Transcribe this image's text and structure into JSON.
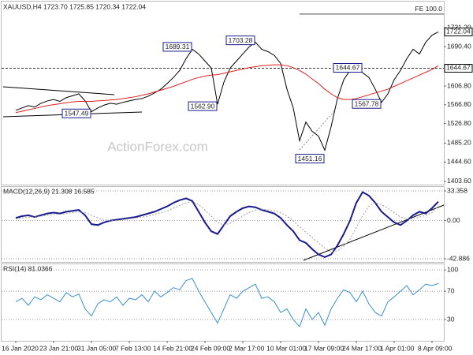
{
  "chart_data": [
    {
      "type": "line",
      "title": "XAUUSD,H4  1723.70 1725.85 1720.34 1722.04",
      "categories": [
        "16 Jan 2020",
        null,
        null,
        null,
        null,
        null,
        "23 Jan 21:00",
        null,
        null,
        null,
        null,
        null,
        "31 Jan 05:00",
        null,
        null,
        null,
        null,
        null,
        "7 Feb 13:00",
        null,
        null,
        null,
        null,
        null,
        "14 Feb 21:00",
        null,
        null,
        null,
        null,
        null,
        "24 Feb 09:00",
        null,
        null,
        null,
        null,
        null,
        "2 Mar 17:00",
        null,
        null,
        null,
        null,
        null,
        "10 Mar 01:00",
        null,
        null,
        null,
        null,
        null,
        "17 Mar 09:00",
        null,
        null,
        null,
        null,
        null,
        "24 Mar 17:00",
        null,
        null,
        null,
        null,
        null,
        "1 Apr 01:00",
        null,
        null,
        null,
        null,
        null,
        "8 Apr 09:00",
        null
      ],
      "series": [
        {
          "color": "#000000",
          "values": [
            1555,
            1560,
            1565,
            1562,
            1570,
            1575,
            1578,
            1574,
            1582,
            1586,
            1590,
            1575,
            1552,
            1560,
            1566,
            1570,
            1568,
            1572,
            1575,
            1578,
            1580,
            1585,
            1592,
            1600,
            1612,
            1625,
            1640,
            1665,
            1685,
            1675,
            1660,
            1645,
            1568,
            1615,
            1645,
            1660,
            1675,
            1690,
            1700,
            1685,
            1680,
            1672,
            1655,
            1600,
            1560,
            1490,
            1530,
            1510,
            1500,
            1470,
            1520,
            1580,
            1620,
            1640,
            1650,
            1635,
            1625,
            1600,
            1572,
            1590,
            1620,
            1640,
            1665,
            1685,
            1675,
            1700,
            1715,
            1722.04
          ]
        },
        {
          "color": "#e02020",
          "values": [
            1550,
            1553,
            1556,
            1559,
            1562,
            1565,
            1567,
            1569,
            1571,
            1573,
            1574,
            1574,
            1574,
            1575,
            1576,
            1577,
            1578,
            1580,
            1582,
            1584,
            1587,
            1590,
            1594,
            1598,
            1602,
            1606,
            1611,
            1616,
            1621,
            1625,
            1628,
            1630,
            1631,
            1634,
            1637,
            1640,
            1643,
            1646,
            1648,
            1650,
            1651,
            1652,
            1652,
            1650,
            1646,
            1640,
            1632,
            1622,
            1612,
            1600,
            1590,
            1582,
            1578,
            1578,
            1580,
            1584,
            1588,
            1592,
            1596,
            1600,
            1606,
            1612,
            1618,
            1624,
            1630,
            1636,
            1642,
            1650
          ]
        }
      ],
      "ylim": [
        1400,
        1780
      ],
      "yticks": [
        {
          "value": 1403.6,
          "label": "1403.60"
        },
        {
          "value": 1444.6,
          "label": "1444.60"
        },
        {
          "value": 1485.2,
          "label": "1485.20"
        },
        {
          "value": 1526.8,
          "label": "1526.80"
        },
        {
          "value": 1566.8,
          "label": "1566.80"
        },
        {
          "value": 1606.8,
          "label": "1606.80"
        },
        {
          "value": 1690.4,
          "label": "1690.40"
        },
        {
          "value": 1731.2,
          "label": "1731.20"
        }
      ],
      "grid": false,
      "annotations": [
        {
          "value": 1547.49,
          "label": "1547.49",
          "x": 12
        },
        {
          "value": 1689.31,
          "label": "1689.31",
          "x": 28
        },
        {
          "value": 1562.9,
          "label": "1562.90",
          "x": 32
        },
        {
          "value": 1703.28,
          "label": "1703.28",
          "x": 38
        },
        {
          "value": 1451.16,
          "label": "1451.16",
          "x": 49
        },
        {
          "value": 1644.67,
          "label": "1644.67",
          "x": 55
        },
        {
          "value": 1567.78,
          "label": "1567.78",
          "x": 58
        }
      ],
      "markers": [
        {
          "value": 1722.04,
          "label": "1722.04",
          "color": "#000000"
        },
        {
          "value": 1644.67,
          "label": "1644.67",
          "color": "#000000",
          "dashed": true
        }
      ],
      "level": {
        "value": 1760,
        "label": "FE 100.0"
      },
      "watermark": "ActionForex.com"
    },
    {
      "type": "line",
      "title": "MACD(12,26,9) 21.308 16.585",
      "series": [
        {
          "color": "#1a1a8c",
          "width": 2,
          "values": [
            3,
            5,
            6,
            4,
            6,
            8,
            9,
            8,
            10,
            11,
            12,
            6,
            -4,
            -5,
            -2,
            0,
            1,
            2,
            3,
            4,
            6,
            8,
            10,
            13,
            16,
            20,
            23,
            25,
            22,
            10,
            -2,
            -12,
            -15,
            -5,
            5,
            10,
            14,
            16,
            15,
            12,
            10,
            8,
            3,
            -5,
            -12,
            -22,
            -25,
            -32,
            -38,
            -41,
            -38,
            -28,
            -15,
            0,
            20,
            32,
            28,
            20,
            10,
            4,
            -2,
            -5,
            0,
            6,
            10,
            8,
            14,
            21.308
          ]
        },
        {
          "color": "#a0a0a0",
          "dashed": true,
          "values": [
            2,
            3,
            4,
            4,
            5,
            6,
            7,
            7,
            8,
            9,
            10,
            9,
            6,
            3,
            1,
            0,
            0,
            1,
            2,
            3,
            4,
            5,
            7,
            9,
            11,
            14,
            17,
            20,
            21,
            18,
            12,
            5,
            -2,
            -5,
            -3,
            1,
            5,
            9,
            12,
            13,
            12,
            11,
            9,
            5,
            0,
            -7,
            -13,
            -19,
            -25,
            -31,
            -35,
            -34,
            -29,
            -21,
            -8,
            6,
            16,
            20,
            18,
            14,
            9,
            4,
            2,
            2,
            4,
            6,
            9,
            16.585
          ]
        }
      ],
      "ylim": [
        -45.5,
        37.8
      ],
      "yticks": [
        33.358,
        {
          "value": 0,
          "label": "0.00"
        },
        -42.886
      ],
      "grid": true
    },
    {
      "type": "line",
      "title": "RSI(14) 81.0366",
      "series": [
        {
          "color": "#3a8fd0",
          "values": [
            55,
            60,
            50,
            62,
            58,
            65,
            60,
            55,
            68,
            62,
            66,
            45,
            35,
            52,
            58,
            55,
            62,
            50,
            60,
            58,
            65,
            55,
            70,
            62,
            68,
            75,
            72,
            85,
            88,
            70,
            55,
            40,
            25,
            45,
            65,
            60,
            70,
            75,
            80,
            60,
            62,
            55,
            40,
            45,
            30,
            20,
            45,
            30,
            40,
            22,
            45,
            60,
            72,
            68,
            55,
            70,
            52,
            40,
            35,
            55,
            62,
            70,
            78,
            65,
            72,
            80,
            78,
            81.0366
          ]
        }
      ],
      "ylim": [
        0,
        108
      ],
      "yticks": [
        100,
        70,
        30
      ],
      "grid": true
    }
  ]
}
